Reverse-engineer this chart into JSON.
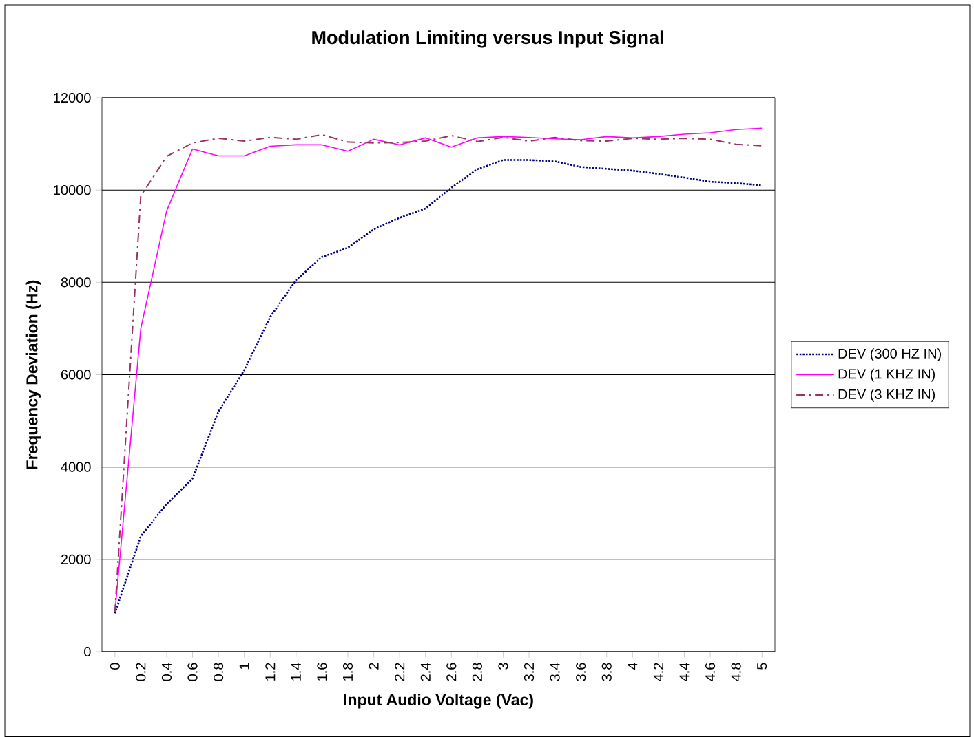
{
  "chart_data": {
    "type": "line",
    "title": "Modulation Limiting versus Input Signal",
    "xlabel": "Input Audio Voltage (Vac)",
    "ylabel": "Frequency Deviation (Hz)",
    "categories": [
      "0",
      "0.2",
      "0.4",
      "0.6",
      "0.8",
      "1",
      "1.2",
      "1.4",
      "1.6",
      "1.8",
      "2",
      "2.2",
      "2.4",
      "2.6",
      "2.8",
      "3",
      "3.2",
      "3.4",
      "3.6",
      "3.8",
      "4",
      "4.2",
      "4.4",
      "4.6",
      "4.8",
      "5"
    ],
    "series": [
      {
        "name": "DEV (300 HZ IN)",
        "color": "#000080",
        "line_style": "dotted",
        "values": [
          830,
          2500,
          3200,
          3750,
          5200,
          6100,
          7250,
          8050,
          8550,
          8750,
          9150,
          9400,
          9600,
          10050,
          10450,
          10650,
          10650,
          10620,
          10500,
          10460,
          10420,
          10350,
          10270,
          10180,
          10150,
          10100
        ]
      },
      {
        "name": "DEV (1 KHZ IN)",
        "color": "#ff00ff",
        "line_style": "solid",
        "values": [
          850,
          7000,
          9550,
          10890,
          10740,
          10740,
          10950,
          10980,
          10980,
          10840,
          11100,
          10980,
          11130,
          10930,
          11130,
          11160,
          11140,
          11110,
          11090,
          11160,
          11130,
          11160,
          11210,
          11240,
          11310,
          11340
        ]
      },
      {
        "name": "DEV (3 KHZ IN)",
        "color": "#993366",
        "line_style": "dashdot",
        "values": [
          850,
          9870,
          10730,
          11020,
          11120,
          11060,
          11140,
          11100,
          11200,
          11040,
          11020,
          11030,
          11060,
          11180,
          11050,
          11140,
          11060,
          11140,
          11070,
          11060,
          11120,
          11100,
          11120,
          11100,
          10990,
          10960
        ]
      }
    ],
    "ylim": [
      0,
      12000
    ],
    "yticks": [
      0,
      2000,
      4000,
      6000,
      8000,
      10000,
      12000
    ],
    "grid": "y",
    "legend": "right",
    "marker": "none"
  }
}
